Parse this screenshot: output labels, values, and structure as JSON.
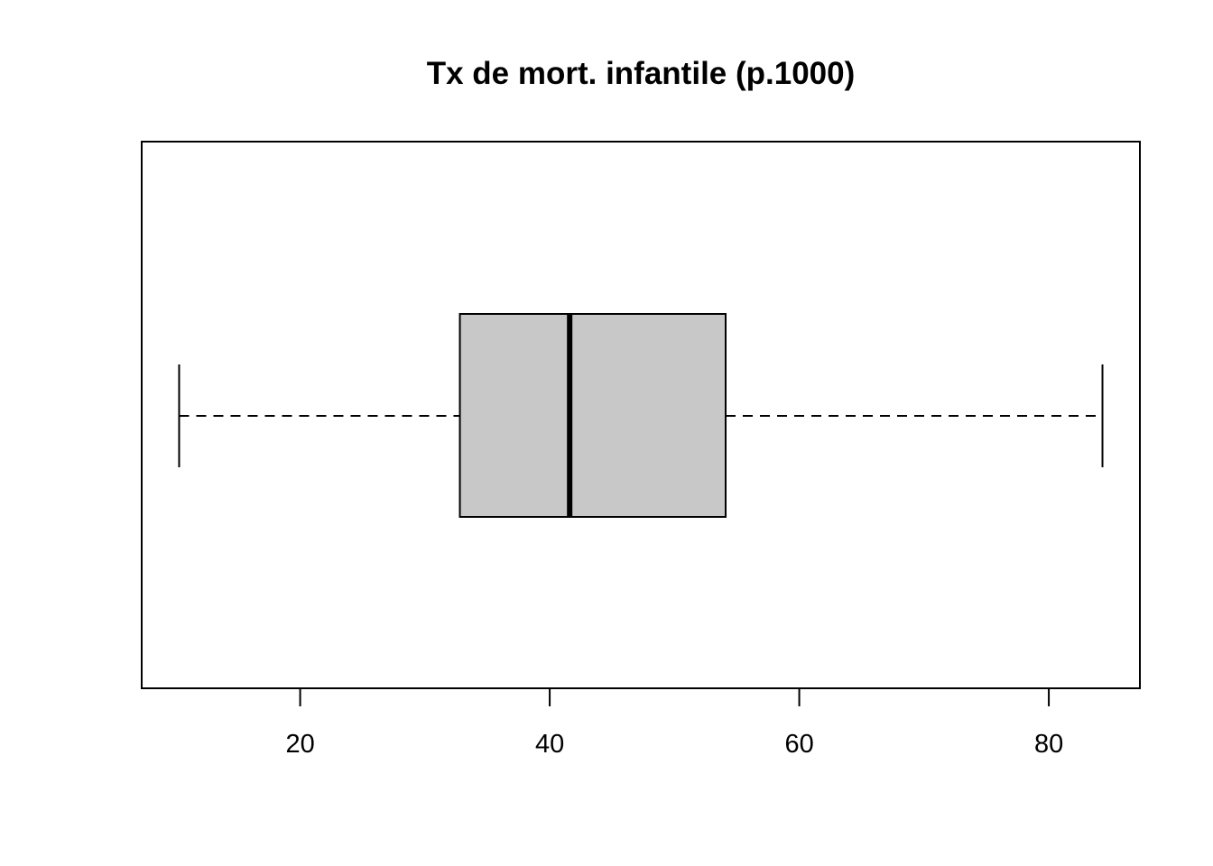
{
  "chart_data": {
    "type": "boxplot",
    "orientation": "horizontal",
    "title": "Tx de mort. infantile (p.1000)",
    "xlabel": "",
    "ylabel": "",
    "xlim": [
      7.3,
      87.3
    ],
    "xticks": [
      20,
      40,
      60,
      80
    ],
    "xtick_labels": [
      "20",
      "40",
      "60",
      "80"
    ],
    "box": {
      "whisker_low": 10.3,
      "q1": 32.8,
      "median": 41.6,
      "q3": 54.1,
      "whisker_high": 84.3
    },
    "grid": false,
    "colors": {
      "box_fill": "#c8c8c8",
      "line": "#000000",
      "background": "#ffffff"
    }
  }
}
